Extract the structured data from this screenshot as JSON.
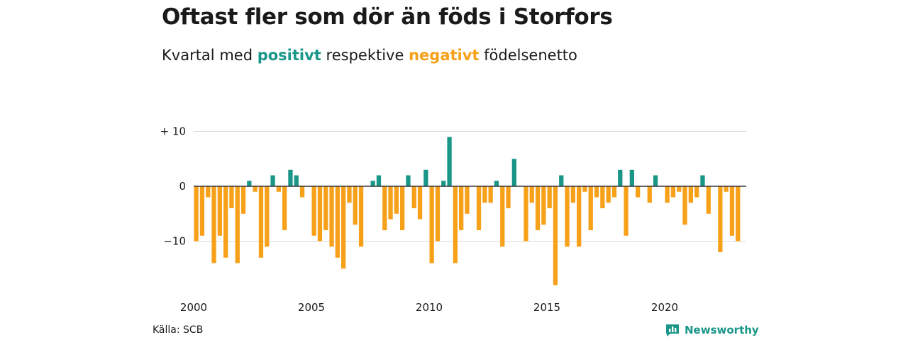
{
  "title": "Oftast fler som dör än föds i Storfors",
  "subtitle": {
    "prefix": "Kvartal med",
    "positive": "positivt",
    "middle": "respektive",
    "negative": "negativt",
    "suffix": "födelsenetto"
  },
  "source": "Källa: SCB",
  "brand": {
    "name": "Newsworthy",
    "icon": "newsworthy-logo-icon"
  },
  "colors": {
    "positive": "#1a9688",
    "negative": "#f7a11a",
    "gridline": "#d9d9d9",
    "zero": "#333333"
  },
  "chart_data": {
    "type": "bar",
    "frequency": "quarterly",
    "x_start": 2000,
    "ylim": [
      -18,
      10
    ],
    "yticks": [
      {
        "value": 10,
        "label": "+ 10"
      },
      {
        "value": 0,
        "label": "0"
      },
      {
        "value": -10,
        "label": "−10"
      }
    ],
    "xticks": [
      {
        "value": 2000,
        "label": "2000"
      },
      {
        "value": 2005,
        "label": "2005"
      },
      {
        "value": 2010,
        "label": "2010"
      },
      {
        "value": 2015,
        "label": "2015"
      },
      {
        "value": 2020,
        "label": "2020"
      }
    ],
    "grid": true,
    "values": [
      -10,
      -9,
      -2,
      -14,
      -9,
      -13,
      -4,
      -14,
      -5,
      1,
      -1,
      -13,
      -11,
      2,
      -1,
      -8,
      3,
      2,
      -2,
      0,
      -9,
      -10,
      -8,
      -11,
      -13,
      -15,
      -3,
      -7,
      -11,
      0,
      1,
      2,
      -8,
      -6,
      -5,
      -8,
      2,
      -4,
      -6,
      3,
      -14,
      -10,
      1,
      9,
      -14,
      -8,
      -5,
      0,
      -8,
      -3,
      -3,
      1,
      -11,
      -4,
      5,
      0,
      -10,
      -3,
      -8,
      -7,
      -4,
      -18,
      2,
      -11,
      -3,
      -11,
      -1,
      -8,
      -2,
      -4,
      -3,
      -2,
      3,
      -9,
      3,
      -2,
      0,
      -3,
      2,
      0,
      -3,
      -2,
      -1,
      -7,
      -3,
      -2,
      2,
      -5,
      0,
      -12,
      -1,
      -9,
      -10
    ]
  }
}
